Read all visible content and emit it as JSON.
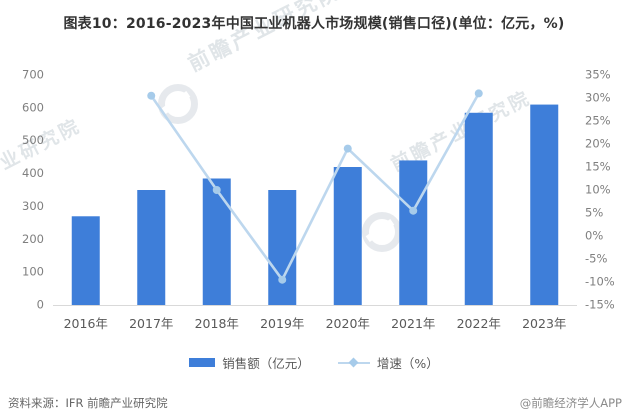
{
  "title": "图表10：2016-2023年中国工业机器人市场规模(销售口径)(单位：亿元，%)",
  "watermark": "前瞻产业研究院",
  "footer": {
    "source": "资料来源：IFR 前瞻产业研究院",
    "credit": "@前瞻经济学人APP"
  },
  "colors": {
    "bar": "#3e7ed9",
    "line": "#bdd7ee",
    "marker": "#a6cbea",
    "axis_text": "#7f7f7f",
    "category_text": "#595959",
    "baseline": "#d9d9d9",
    "title_text": "#333333"
  },
  "legend": {
    "items": [
      {
        "label": "销售额（亿元）",
        "type": "bar"
      },
      {
        "label": "增速（%）",
        "type": "line"
      }
    ]
  },
  "chart_data": {
    "type": "bar+line",
    "title": "2016-2023年中国工业机器人市场规模(销售口径)",
    "categories": [
      "2016年",
      "2017年",
      "2018年",
      "2019年",
      "2020年",
      "2021年",
      "2022年",
      "2023年"
    ],
    "series": [
      {
        "name": "销售额（亿元）",
        "type": "bar",
        "axis": "left",
        "values": [
          270,
          350,
          385,
          350,
          420,
          440,
          585,
          610
        ]
      },
      {
        "name": "增速（%）",
        "type": "line",
        "axis": "right",
        "values": [
          null,
          30.5,
          10,
          -9.5,
          19,
          5.5,
          31,
          null
        ]
      }
    ],
    "left_axis": {
      "min": 0,
      "max": 700,
      "step": 100,
      "ticks": [
        "700",
        "600",
        "500",
        "400",
        "300",
        "200",
        "100",
        "0"
      ]
    },
    "right_axis": {
      "min": -15,
      "max": 35,
      "step": 5,
      "ticks": [
        "35%",
        "30%",
        "25%",
        "20%",
        "15%",
        "10%",
        "5%",
        "0%",
        "-5%",
        "-10%",
        "-15%"
      ]
    },
    "grid": false,
    "legend_position": "bottom"
  }
}
